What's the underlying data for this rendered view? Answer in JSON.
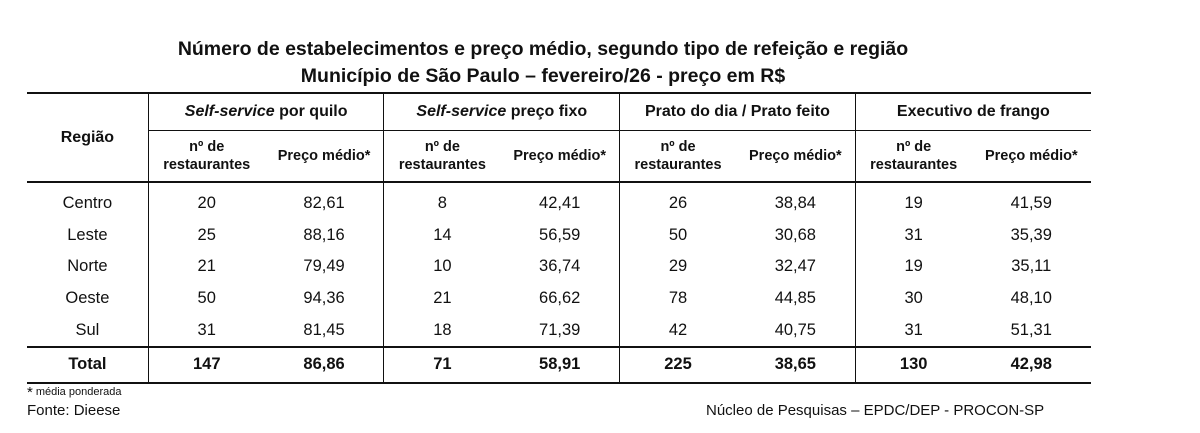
{
  "title": {
    "line1": "Número de estabelecimentos e preço médio, segundo tipo de refeição e região",
    "line2": "Município de São Paulo – fevereiro/26 - preço em R$"
  },
  "table": {
    "region_header": "Região",
    "groups": [
      {
        "italic": "Self-service",
        "rest": " por quilo"
      },
      {
        "italic": "Self-service",
        "rest": " preço fixo"
      },
      {
        "italic": "",
        "rest": "Prato do dia / Prato feito"
      },
      {
        "italic": "",
        "rest": "Executivo de frango"
      }
    ],
    "sub_count_line1": "nº de",
    "sub_count_line2": "restaurantes",
    "sub_price": "Preço médio*",
    "rows": [
      {
        "region": "Centro",
        "values": [
          "20",
          "82,61",
          "8",
          "42,41",
          "26",
          "38,84",
          "19",
          "41,59"
        ]
      },
      {
        "region": "Leste",
        "values": [
          "25",
          "88,16",
          "14",
          "56,59",
          "50",
          "30,68",
          "31",
          "35,39"
        ]
      },
      {
        "region": "Norte",
        "values": [
          "21",
          "79,49",
          "10",
          "36,74",
          "29",
          "32,47",
          "19",
          "35,11"
        ]
      },
      {
        "region": "Oeste",
        "values": [
          "50",
          "94,36",
          "21",
          "66,62",
          "78",
          "44,85",
          "30",
          "48,10"
        ]
      },
      {
        "region": "Sul",
        "values": [
          "31",
          "81,45",
          "18",
          "71,39",
          "42",
          "40,75",
          "31",
          "51,31"
        ]
      }
    ],
    "total": {
      "region": "Total",
      "values": [
        "147",
        "86,86",
        "71",
        "58,91",
        "225",
        "38,65",
        "130",
        "42,98"
      ]
    }
  },
  "footnote": {
    "star": "*",
    "text": "média ponderada"
  },
  "source": "Fonte: Dieese",
  "credit": "Núcleo de Pesquisas – EPDC/DEP - PROCON-SP"
}
